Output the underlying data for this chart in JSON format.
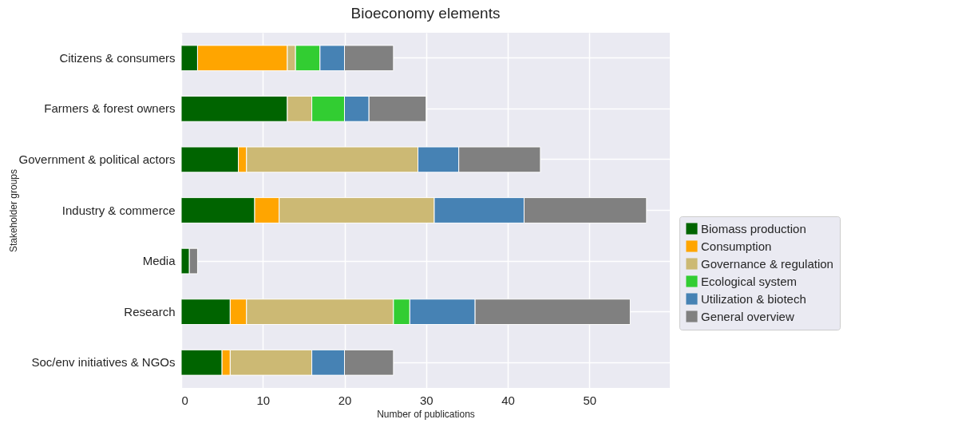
{
  "chart_data": {
    "type": "bar",
    "orientation": "horizontal",
    "stacked": true,
    "title": "Bioeconomy elements",
    "xlabel": "Number of publications",
    "ylabel": "Stakeholder groups",
    "categories": [
      "Citizens & consumers",
      "Farmers & forest owners",
      "Government & political actors",
      "Industry & commerce",
      "Media",
      "Research",
      "Soc/env initiatives & NGOs"
    ],
    "series": [
      {
        "name": "Biomass production",
        "color": "#006400",
        "values": [
          2,
          13,
          7,
          9,
          1,
          6,
          5
        ]
      },
      {
        "name": "Consumption",
        "color": "#ffa500",
        "values": [
          11,
          null,
          1,
          3,
          null,
          2,
          1
        ]
      },
      {
        "name": "Governance & regulation",
        "color": "#ccb974",
        "values": [
          1,
          3,
          21,
          19,
          null,
          18,
          10
        ]
      },
      {
        "name": "Ecological system",
        "color": "#32cd32",
        "values": [
          3,
          4,
          null,
          null,
          null,
          2,
          null
        ]
      },
      {
        "name": "Utilization & biotech",
        "color": "#4682b4",
        "values": [
          3,
          3,
          5,
          11,
          null,
          8,
          4
        ]
      },
      {
        "name": "General overview",
        "color": "#808080",
        "values": [
          6,
          7,
          10,
          15,
          1,
          19,
          6
        ]
      }
    ],
    "xlim": [
      0,
      59.85
    ],
    "xticks": [
      0,
      10,
      20,
      30,
      40,
      50
    ],
    "grid": true,
    "legend": "right"
  }
}
